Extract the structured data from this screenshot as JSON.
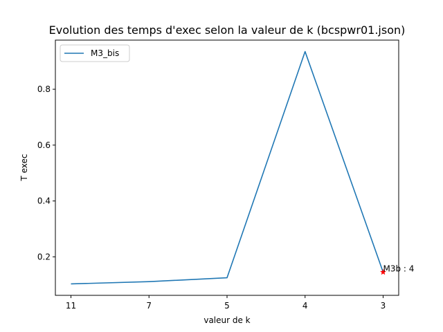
{
  "chart_data": {
    "type": "line",
    "title": "Evolution des temps d'exec selon la valeur de k (bcspwr01.json)",
    "xlabel": "valeur de k",
    "ylabel": "T exec",
    "categories": [
      "11",
      "7",
      "5",
      "4",
      "3"
    ],
    "series": [
      {
        "name": "M3_bis",
        "values": [
          0.103,
          0.111,
          0.125,
          0.935,
          0.145
        ],
        "color": "#1f77b4"
      }
    ],
    "yticks": [
      0.2,
      0.4,
      0.6,
      0.8
    ],
    "ytick_labels": [
      "0.2",
      "0.4",
      "0.6",
      "0.8"
    ],
    "ylim": [
      0.062,
      0.976
    ],
    "annotations": [
      {
        "category": "3",
        "value": 0.145,
        "text": "M3b : 4",
        "marker": "star",
        "color": "#ff0000"
      }
    ],
    "legend_position": "top-left",
    "grid": false
  }
}
